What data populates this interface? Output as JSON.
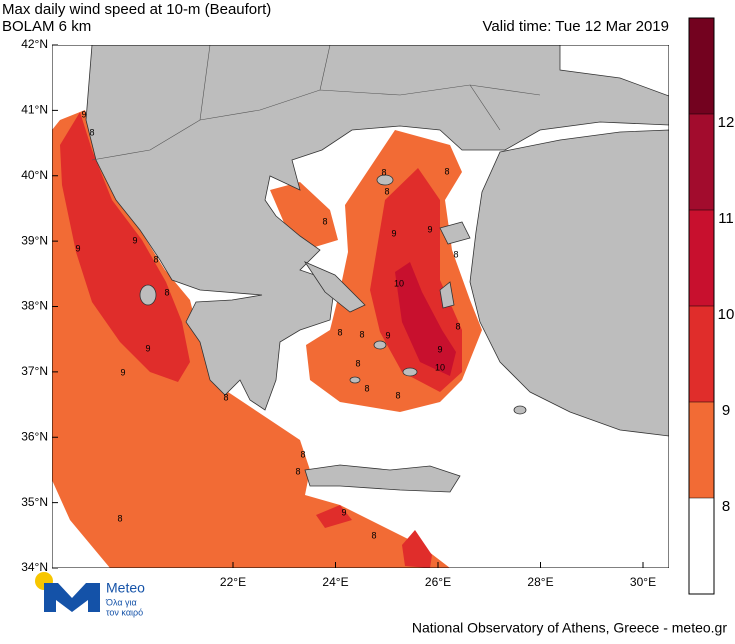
{
  "header": {
    "title": "Max daily wind speed at 10-m (Beaufort)",
    "subtitle": "BOLAM 6 km",
    "valid_time": "Valid time: Tue 12 Mar 2019"
  },
  "map": {
    "lat_labels": [
      "42°N",
      "41°N",
      "40°N",
      "39°N",
      "38°N",
      "37°N",
      "36°N",
      "35°N",
      "34°N"
    ],
    "lon_labels": [
      "22°E",
      "24°E",
      "26°E",
      "28°E",
      "30°E"
    ],
    "contour_labels": [
      "9",
      "8",
      "9",
      "9",
      "8",
      "8",
      "9",
      "9",
      "8",
      "8",
      "8",
      "8",
      "8",
      "9",
      "9",
      "8",
      "10",
      "8",
      "8",
      "8",
      "9",
      "8",
      "8",
      "8",
      "9",
      "10",
      "8",
      "8",
      "9",
      "8",
      "8"
    ]
  },
  "colorbar": {
    "levels": [
      8,
      9,
      10,
      11,
      12
    ],
    "colors": [
      "#ffffff",
      "#f26b35",
      "#e02d2b",
      "#c8102e",
      "#a20c2d",
      "#73021f"
    ]
  },
  "logo": {
    "name": "Meteo",
    "tagline_1": "Όλα για",
    "tagline_2": "τον καιρό"
  },
  "footer": {
    "credit": "National Observatory of Athens, Greece - meteo.gr"
  }
}
